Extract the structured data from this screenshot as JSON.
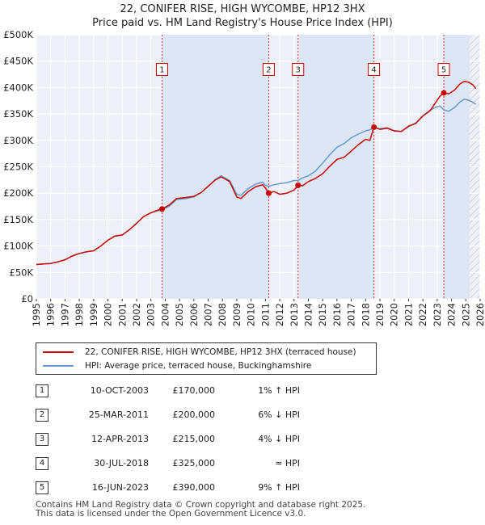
{
  "title_line1": "22, CONIFER RISE, HIGH WYCOMBE, HP12 3HX",
  "title_line2": "Price paid vs. HM Land Registry's House Price Index (HPI)",
  "colors": {
    "property": "#cc0000",
    "hpi": "#6699cc",
    "shade": "#dde6f4",
    "marker_line": "#cc0000",
    "grid": "#ffffff"
  },
  "legend": {
    "property_label": "22, CONIFER RISE, HIGH WYCOMBE, HP12 3HX (terraced house)",
    "hpi_label": "HPI: Average price, terraced house, Buckinghamshire"
  },
  "transactions": [
    {
      "num": "1",
      "date": "10-OCT-2003",
      "price": "£170,000",
      "hpi": "1% ↑ HPI"
    },
    {
      "num": "2",
      "date": "25-MAR-2011",
      "price": "£200,000",
      "hpi": "6% ↓ HPI"
    },
    {
      "num": "3",
      "date": "12-APR-2013",
      "price": "£215,000",
      "hpi": "4% ↓ HPI"
    },
    {
      "num": "4",
      "date": "30-JUL-2018",
      "price": "£325,000",
      "hpi": "≈ HPI"
    },
    {
      "num": "5",
      "date": "16-JUN-2023",
      "price": "£390,000",
      "hpi": "9% ↑ HPI"
    }
  ],
  "footer_line1": "Contains HM Land Registry data © Crown copyright and database right 2025.",
  "footer_line2": "This data is licensed under the Open Government Licence v3.0.",
  "chart_data": {
    "type": "line",
    "title": "22, CONIFER RISE, HIGH WYCOMBE, HP12 3HX — Price paid vs. HM Land Registry's House Price Index (HPI)",
    "xlabel": "",
    "ylabel": "",
    "xlim": [
      1995,
      2026
    ],
    "ylim": [
      0,
      500000
    ],
    "yticks": [
      0,
      50000,
      100000,
      150000,
      200000,
      250000,
      300000,
      350000,
      400000,
      450000,
      500000
    ],
    "ytick_labels": [
      "£0",
      "£50K",
      "£100K",
      "£150K",
      "£200K",
      "£250K",
      "£300K",
      "£350K",
      "£400K",
      "£450K",
      "£500K"
    ],
    "xticks": [
      1995,
      1996,
      1997,
      1998,
      1999,
      2000,
      2001,
      2002,
      2003,
      2004,
      2005,
      2006,
      2007,
      2008,
      2009,
      2010,
      2011,
      2012,
      2013,
      2014,
      2015,
      2016,
      2017,
      2018,
      2019,
      2020,
      2021,
      2022,
      2023,
      2024,
      2025,
      2026
    ],
    "xtick_labels": [
      "1995",
      "1996",
      "1997",
      "1998",
      "1999",
      "2000",
      "2001",
      "2002",
      "2003",
      "2004",
      "2005",
      "2006",
      "2007",
      "2008",
      "2009",
      "2010",
      "2011",
      "2012",
      "2013",
      "2014",
      "2015",
      "2016",
      "2017",
      "2018",
      "2019",
      "2020",
      "2021",
      "2022",
      "2023",
      "2024",
      "2025",
      "2026"
    ],
    "hatch_from": 2025.25,
    "grid": true,
    "legend_position": "below",
    "series": [
      {
        "name": "22, CONIFER RISE, HIGH WYCOMBE, HP12 3HX (terraced house)",
        "color": "#cc0000",
        "x": [
          1995.0,
          1995.5,
          1996.0,
          1996.5,
          1997.0,
          1997.5,
          1998.0,
          1998.5,
          1999.0,
          1999.5,
          2000.0,
          2000.5,
          2001.0,
          2001.5,
          2002.0,
          2002.5,
          2003.0,
          2003.5,
          2003.78,
          2004.3,
          2004.8,
          2005.5,
          2006.0,
          2006.5,
          2007.0,
          2007.5,
          2007.9,
          2008.5,
          2009.0,
          2009.3,
          2009.8,
          2010.3,
          2010.8,
          2011.0,
          2011.23,
          2011.6,
          2012.0,
          2012.5,
          2013.0,
          2013.28,
          2013.6,
          2014.0,
          2014.5,
          2015.0,
          2015.5,
          2016.0,
          2016.5,
          2017.0,
          2017.5,
          2018.0,
          2018.3,
          2018.58,
          2019.0,
          2019.5,
          2020.0,
          2020.5,
          2021.0,
          2021.5,
          2022.0,
          2022.5,
          2022.9,
          2023.2,
          2023.46,
          2023.8,
          2024.2,
          2024.6,
          2024.9,
          2025.2,
          2025.5,
          2025.7
        ],
        "values": [
          65000,
          66000,
          67000,
          70000,
          74000,
          81000,
          86000,
          89000,
          91000,
          100000,
          111000,
          119000,
          121000,
          131000,
          143000,
          156000,
          163000,
          168000,
          170000,
          178000,
          190000,
          192000,
          194000,
          201000,
          213000,
          225000,
          231000,
          222000,
          193000,
          190000,
          203000,
          212000,
          216000,
          210000,
          200000,
          203000,
          198000,
          200000,
          206000,
          215000,
          214000,
          222000,
          228000,
          237000,
          251000,
          264000,
          268000,
          280000,
          292000,
          302000,
          300000,
          325000,
          321000,
          323000,
          318000,
          317000,
          327000,
          332000,
          346000,
          356000,
          372000,
          384000,
          390000,
          388000,
          395000,
          407000,
          412000,
          410000,
          405000,
          398000
        ]
      },
      {
        "name": "HPI: Average price, terraced house, Buckinghamshire",
        "color": "#6699cc",
        "x": [
          1995.0,
          1995.5,
          1996.0,
          1996.5,
          1997.0,
          1997.5,
          1998.0,
          1998.5,
          1999.0,
          1999.5,
          2000.0,
          2000.5,
          2001.0,
          2001.5,
          2002.0,
          2002.5,
          2003.0,
          2003.5,
          2003.78,
          2004.3,
          2004.8,
          2005.5,
          2006.0,
          2006.5,
          2007.0,
          2007.5,
          2007.9,
          2008.5,
          2009.0,
          2009.3,
          2009.8,
          2010.3,
          2010.8,
          2011.0,
          2011.23,
          2011.6,
          2012.0,
          2012.5,
          2013.0,
          2013.28,
          2013.6,
          2014.0,
          2014.5,
          2015.0,
          2015.5,
          2016.0,
          2016.5,
          2017.0,
          2017.5,
          2018.0,
          2018.3,
          2018.58,
          2019.0,
          2019.5,
          2020.0,
          2020.5,
          2021.0,
          2021.5,
          2022.0,
          2022.5,
          2022.9,
          2023.2,
          2023.46,
          2023.8,
          2024.2,
          2024.6,
          2024.9,
          2025.2,
          2025.5,
          2025.7
        ],
        "values": [
          65000,
          66000,
          67000,
          70000,
          74000,
          81000,
          86000,
          89000,
          91000,
          100000,
          111000,
          119000,
          121000,
          131000,
          143000,
          156000,
          163000,
          167000,
          168000,
          176000,
          188000,
          190000,
          193000,
          201000,
          213000,
          226000,
          233000,
          224000,
          198000,
          196000,
          209000,
          217000,
          221000,
          215000,
          213000,
          216000,
          218000,
          220000,
          224000,
          224000,
          229000,
          233000,
          242000,
          257000,
          273000,
          287000,
          294000,
          305000,
          312000,
          318000,
          320000,
          324000,
          322000,
          324000,
          318000,
          317000,
          326000,
          333000,
          347000,
          357000,
          363000,
          365000,
          358000,
          355000,
          362000,
          373000,
          378000,
          376000,
          372000,
          368000
        ]
      }
    ],
    "transactions": [
      {
        "label": "1",
        "x": 2003.78,
        "y": 170000
      },
      {
        "label": "2",
        "x": 2011.23,
        "y": 200000
      },
      {
        "label": "3",
        "x": 2013.28,
        "y": 215000
      },
      {
        "label": "4",
        "x": 2018.58,
        "y": 325000
      },
      {
        "label": "5",
        "x": 2023.46,
        "y": 390000
      }
    ],
    "marker_box_value": 435000
  }
}
